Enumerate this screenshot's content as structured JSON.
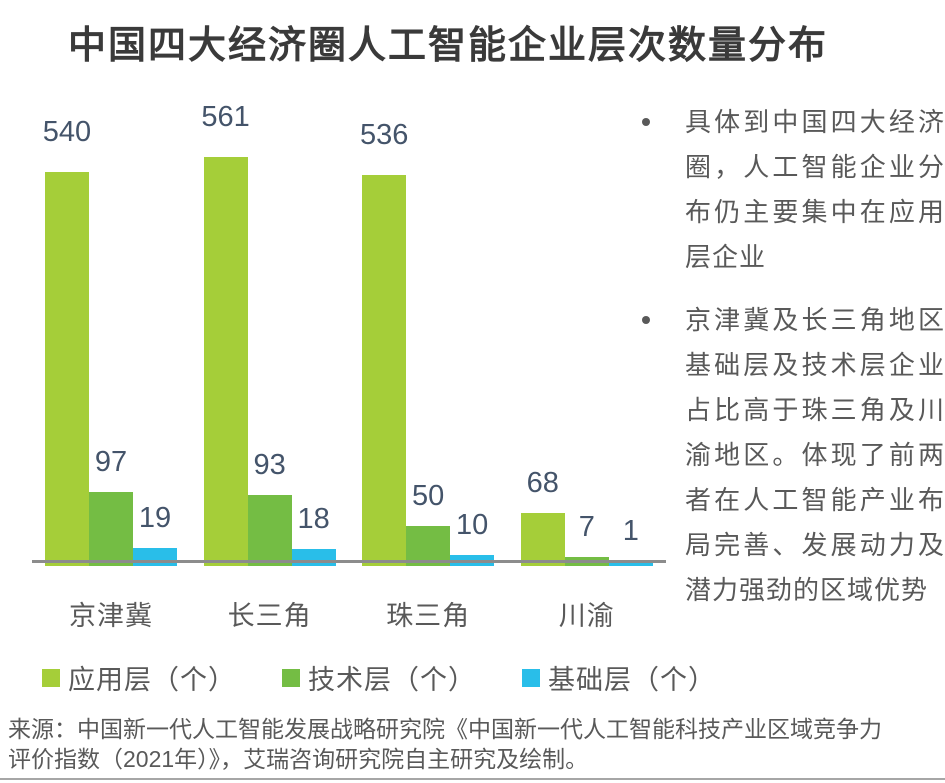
{
  "chart_data": {
    "type": "bar",
    "title": "中国四大经济圈人工智能企业层次数量分布",
    "categories": [
      "京津冀",
      "长三角",
      "珠三角",
      "川渝"
    ],
    "series": [
      {
        "name": "应用层（个）",
        "color": "#a5ce39",
        "values": [
          540,
          561,
          536,
          68
        ]
      },
      {
        "name": "技术层（个）",
        "color": "#74bd44",
        "values": [
          97,
          93,
          50,
          7
        ]
      },
      {
        "name": "基础层（个）",
        "color": "#29bee9",
        "values": [
          19,
          18,
          10,
          1
        ]
      }
    ],
    "ylim": [
      0,
      580
    ],
    "grid": false,
    "legend_position": "bottom",
    "data_labels": true,
    "data_label_color": "#44546a",
    "axis_color": "#8c8c8c"
  },
  "notes": [
    "具体到中国四大经济圈，人工智能企业分布仍主要集中在应用层企业",
    "京津冀及长三角地区基础层及技术层企业占比高于珠三角及川渝地区。体现了前两者在人工智能产业布局完善、发展动力及潜力强劲的区域优势"
  ],
  "source": "来源：中国新一代人工智能发展战略研究院《中国新一代人工智能科技产业区域竞争力评价指数（2021年）》，艾瑞咨询研究院自主研究及绘制。"
}
